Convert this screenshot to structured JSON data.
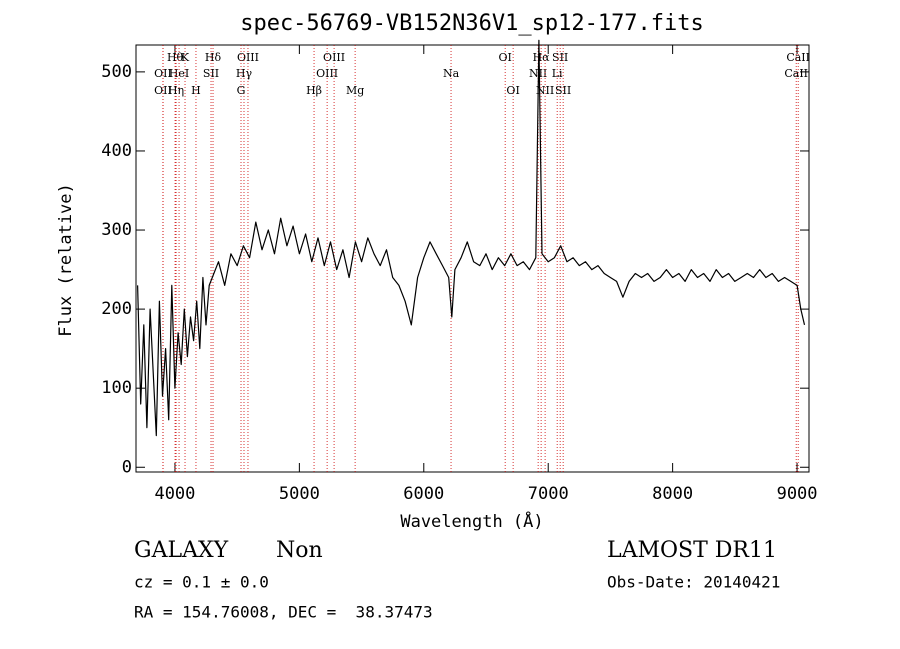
{
  "chart_data": {
    "type": "line",
    "title": "spec-56769-VB152N36V1_sp12-177.fits",
    "xlabel": "Wavelength (Å)",
    "ylabel": "Flux (relative)",
    "xlim": [
      3687,
      9096
    ],
    "ylim": [
      -6,
      534
    ],
    "xticks": [
      4000,
      5000,
      6000,
      7000,
      8000,
      9000
    ],
    "yticks": [
      0,
      100,
      200,
      300,
      400,
      500
    ],
    "color": "#000000",
    "line_color": "#cc0000",
    "x": [
      3700,
      3725,
      3750,
      3775,
      3800,
      3825,
      3850,
      3875,
      3900,
      3925,
      3950,
      3975,
      4000,
      4025,
      4050,
      4075,
      4100,
      4125,
      4150,
      4175,
      4200,
      4225,
      4250,
      4275,
      4300,
      4350,
      4400,
      4450,
      4500,
      4550,
      4600,
      4650,
      4700,
      4750,
      4800,
      4850,
      4900,
      4950,
      5000,
      5050,
      5100,
      5150,
      5200,
      5250,
      5300,
      5350,
      5400,
      5450,
      5500,
      5550,
      5600,
      5650,
      5700,
      5750,
      5800,
      5850,
      5900,
      5950,
      6000,
      6050,
      6100,
      6150,
      6200,
      6225,
      6250,
      6300,
      6350,
      6400,
      6450,
      6500,
      6550,
      6600,
      6650,
      6700,
      6750,
      6800,
      6850,
      6900,
      6925,
      6950,
      7000,
      7050,
      7100,
      7150,
      7200,
      7250,
      7300,
      7350,
      7400,
      7450,
      7500,
      7550,
      7600,
      7650,
      7700,
      7750,
      7800,
      7850,
      7900,
      7950,
      8000,
      8050,
      8100,
      8150,
      8200,
      8250,
      8300,
      8350,
      8400,
      8450,
      8500,
      8550,
      8600,
      8650,
      8700,
      8750,
      8800,
      8850,
      8900,
      8950,
      9000,
      9030,
      9060
    ],
    "values": [
      230,
      80,
      180,
      50,
      200,
      120,
      40,
      210,
      90,
      150,
      60,
      230,
      100,
      170,
      130,
      200,
      140,
      190,
      160,
      210,
      150,
      240,
      180,
      230,
      240,
      260,
      230,
      270,
      255,
      280,
      265,
      310,
      275,
      300,
      270,
      315,
      280,
      305,
      270,
      295,
      260,
      290,
      255,
      285,
      250,
      275,
      240,
      285,
      260,
      290,
      270,
      255,
      275,
      240,
      230,
      210,
      180,
      240,
      265,
      285,
      270,
      255,
      240,
      190,
      250,
      265,
      285,
      260,
      255,
      270,
      250,
      265,
      255,
      270,
      255,
      260,
      250,
      265,
      540,
      270,
      260,
      265,
      280,
      260,
      265,
      255,
      260,
      250,
      255,
      245,
      240,
      235,
      215,
      235,
      245,
      240,
      245,
      235,
      240,
      250,
      240,
      245,
      235,
      250,
      240,
      245,
      235,
      250,
      240,
      245,
      235,
      240,
      245,
      240,
      250,
      240,
      245,
      235,
      240,
      235,
      230,
      200,
      180
    ],
    "lines": [
      {
        "label": "Hθ",
        "x": 4001,
        "row": 1
      },
      {
        "label": "K",
        "x": 4081,
        "row": 1
      },
      {
        "label": "Hδ",
        "x": 4306,
        "row": 1
      },
      {
        "label": "OIII",
        "x": 4587,
        "row": 1
      },
      {
        "label": "OIII",
        "x": 5279,
        "row": 1
      },
      {
        "label": "OI",
        "x": 6654,
        "row": 1
      },
      {
        "label": "Hα",
        "x": 6943,
        "row": 1
      },
      {
        "label": "SII",
        "x": 7096,
        "row": 1
      },
      {
        "label": "CaII",
        "x": 9009,
        "row": 1
      },
      {
        "label": "OII",
        "x": 3904,
        "row": 2
      },
      {
        "label": "HeI",
        "x": 4033,
        "row": 2
      },
      {
        "label": "SII",
        "x": 4290,
        "row": 2
      },
      {
        "label": "Hγ",
        "x": 4555,
        "row": 2
      },
      {
        "label": "OIII",
        "x": 5223,
        "row": 2
      },
      {
        "label": "Na",
        "x": 6219,
        "row": 2
      },
      {
        "label": "NII",
        "x": 6919,
        "row": 2
      },
      {
        "label": "Li",
        "x": 7072,
        "row": 2
      },
      {
        "label": "CaII",
        "x": 8993,
        "row": 2
      },
      {
        "label": "OII",
        "x": 3904,
        "row": 3
      },
      {
        "label": "Hη",
        "x": 4009,
        "row": 3
      },
      {
        "label": "H",
        "x": 4169,
        "row": 3
      },
      {
        "label": "G",
        "x": 4531,
        "row": 3
      },
      {
        "label": "Hβ",
        "x": 5118,
        "row": 3
      },
      {
        "label": "Mg",
        "x": 5448,
        "row": 3
      },
      {
        "label": "OI",
        "x": 6718,
        "row": 3
      },
      {
        "label": "NII",
        "x": 6975,
        "row": 3
      },
      {
        "label": "SII",
        "x": 7120,
        "row": 3
      }
    ],
    "info": {
      "class": "GALAXY",
      "subclass": "Non",
      "survey": "LAMOST DR11",
      "cz": "cz = 0.1 ± 0.0",
      "obs_date": "Obs-Date: 20140421",
      "coords": "RA = 154.76008, DEC =  38.37473"
    }
  }
}
